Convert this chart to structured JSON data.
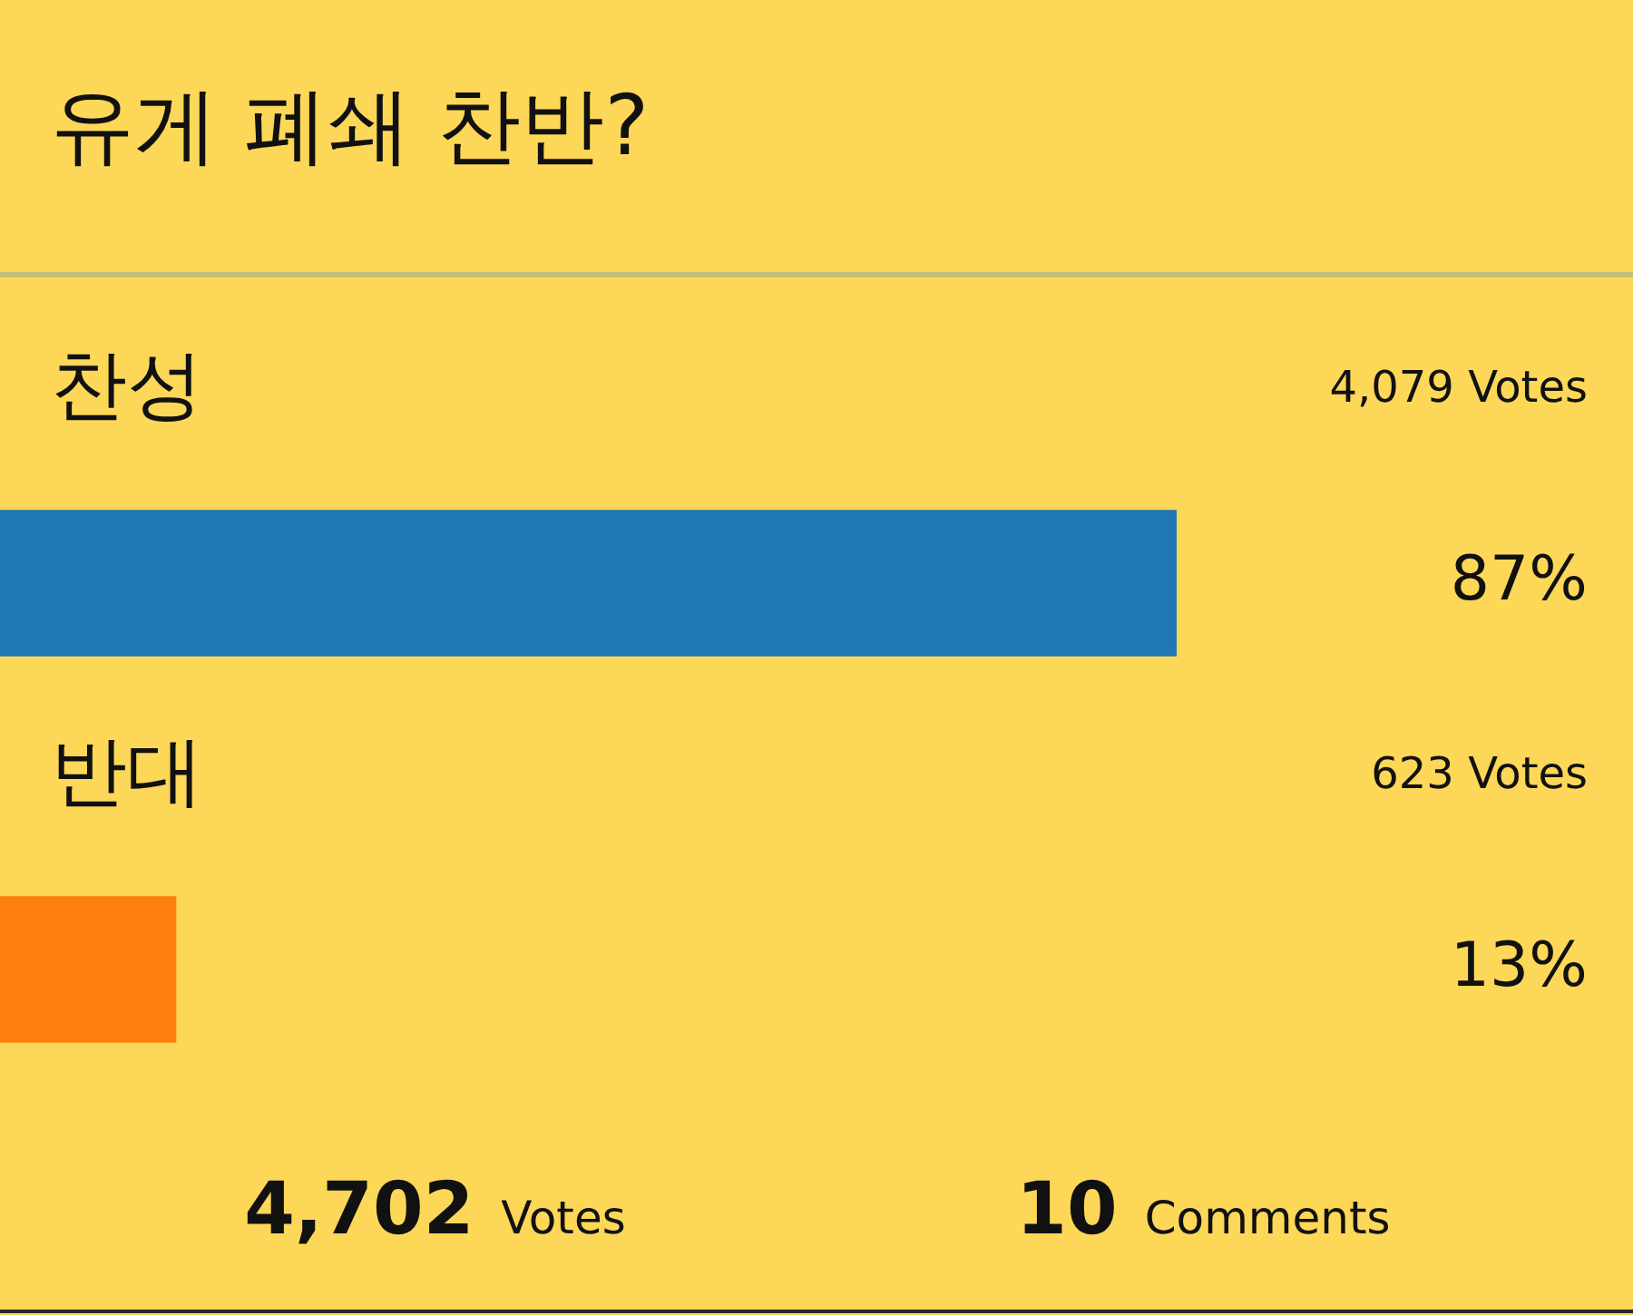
{
  "chart_data": {
    "type": "bar",
    "orientation": "horizontal",
    "title": "유게 폐쇄 찬반?",
    "categories": [
      "찬성",
      "반대"
    ],
    "values": [
      87,
      13
    ],
    "colors": [
      "#1f77b4",
      "#ff7f0e"
    ],
    "value_labels": [
      "87%",
      "13%"
    ],
    "annotations": [
      "4,079 Votes",
      "623 Votes",
      "4,702 Votes",
      "10 Comments"
    ]
  }
}
